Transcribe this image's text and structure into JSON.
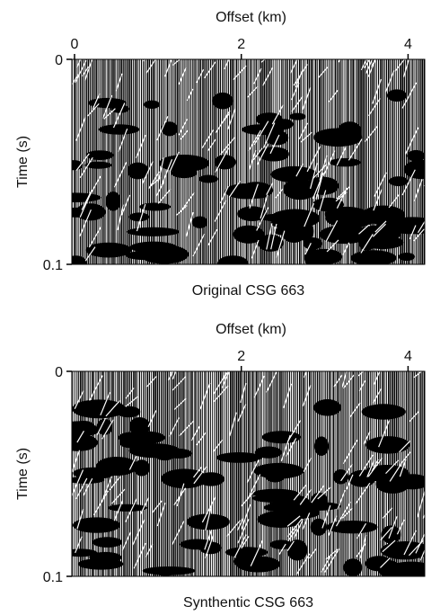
{
  "chart_data": [
    {
      "type": "seismic",
      "title": "Original CSG 663",
      "xlabel": "Offset (km)",
      "ylabel": "Time (s)",
      "xlim": [
        0,
        4.2
      ],
      "xticks": [
        0,
        2,
        4
      ],
      "ylim": [
        0,
        0.1
      ],
      "yticks": [
        0,
        0.1
      ]
    },
    {
      "type": "seismic",
      "title": "Synthentic CSG 663",
      "xlabel": "Offset (km)",
      "ylabel": "Time (s)",
      "xlim": [
        0,
        4.2
      ],
      "xticks": [
        2,
        4
      ],
      "ylim": [
        0,
        0.1
      ],
      "yticks": [
        0,
        0.1
      ]
    }
  ]
}
